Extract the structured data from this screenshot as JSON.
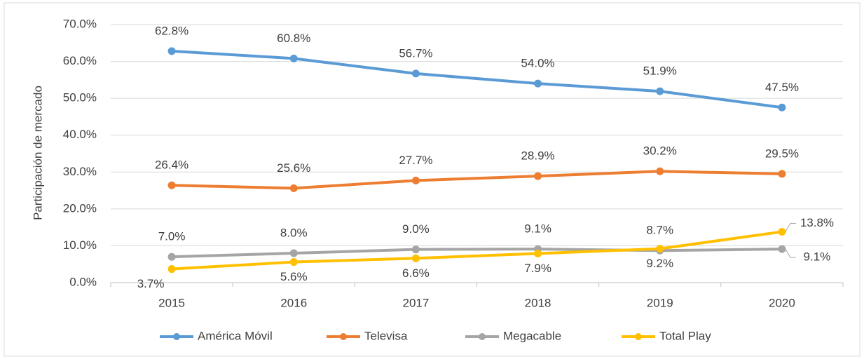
{
  "chart_data": {
    "type": "line",
    "y_label": "Participación de mercado",
    "categories": [
      "2015",
      "2016",
      "2017",
      "2018",
      "2019",
      "2020"
    ],
    "series": [
      {
        "name": "América Móvil",
        "color": "#5b9bd5",
        "values": [
          62.8,
          60.8,
          56.7,
          54.0,
          51.9,
          47.5
        ],
        "value_labels": [
          "62.8%",
          "60.8%",
          "56.7%",
          "54.0%",
          "51.9%",
          "47.5%"
        ]
      },
      {
        "name": "Televisa",
        "color": "#ed7d31",
        "values": [
          26.4,
          25.6,
          27.7,
          28.9,
          30.2,
          29.5
        ],
        "value_labels": [
          "26.4%",
          "25.6%",
          "27.7%",
          "28.9%",
          "30.2%",
          "29.5%"
        ]
      },
      {
        "name": "Megacable",
        "color": "#a5a5a5",
        "values": [
          7.0,
          8.0,
          9.0,
          9.1,
          8.7,
          9.1
        ],
        "value_labels": [
          "7.0%",
          "8.0%",
          "9.0%",
          "9.1%",
          "8.7%",
          "9.1%"
        ]
      },
      {
        "name": "Total Play",
        "color": "#ffc000",
        "values": [
          3.7,
          5.6,
          6.6,
          7.9,
          9.2,
          13.8
        ],
        "value_labels": [
          "3.7%",
          "5.6%",
          "6.6%",
          "7.9%",
          "9.2%",
          "13.8%"
        ]
      }
    ],
    "ylim": [
      0,
      70
    ],
    "yticks": [
      {
        "value": 0,
        "label": "0.0%"
      },
      {
        "value": 10,
        "label": "10.0%"
      },
      {
        "value": 20,
        "label": "20.0%"
      },
      {
        "value": 30,
        "label": "30.0%"
      },
      {
        "value": 40,
        "label": "40.0%"
      },
      {
        "value": 50,
        "label": "50.0%"
      },
      {
        "value": 60,
        "label": "60.0%"
      },
      {
        "value": 70,
        "label": "70.0%"
      }
    ],
    "grid": true,
    "legend": "bottom"
  }
}
